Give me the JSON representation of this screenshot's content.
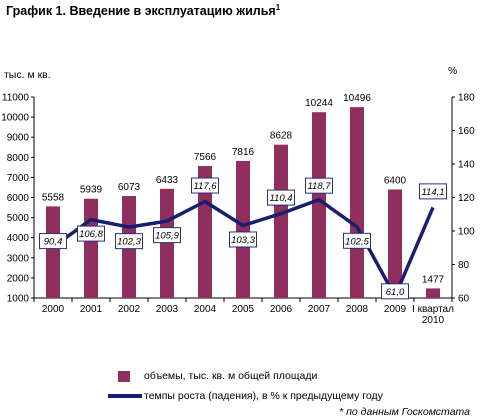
{
  "title": "График 1. Введение в эксплуатацию жилья",
  "title_mark": "1",
  "source_note": "* по данным Госкомстата",
  "colors": {
    "bar": "#8e2f5e",
    "line": "#16206e",
    "label_border": "#2a2f7a"
  },
  "chart_data": {
    "type": "bar",
    "categories": [
      "2000",
      "2001",
      "2002",
      "2003",
      "2004",
      "2005",
      "2006",
      "2007",
      "2008",
      "2009",
      "I квартал\n2010"
    ],
    "left_axis_label": "тыс. м кв.",
    "right_axis_label": "%",
    "left_ylim": [
      1000,
      11000
    ],
    "left_ticks": [
      1000,
      2000,
      3000,
      4000,
      5000,
      6000,
      7000,
      8000,
      9000,
      10000,
      11000
    ],
    "right_ylim": [
      60,
      180
    ],
    "right_ticks": [
      60,
      80,
      100,
      120,
      140,
      160,
      180
    ],
    "grid": false,
    "series": [
      {
        "name": "объемы, тыс. кв. м общей площади",
        "type": "bar",
        "axis": "left",
        "values": [
          5558,
          5939,
          6073,
          6433,
          7566,
          7816,
          8628,
          10244,
          10496,
          6400,
          1477
        ],
        "labels": [
          "5558",
          "5939",
          "6073",
          "6433",
          "7566",
          "7816",
          "8628",
          "10244",
          "10496",
          "6400",
          "1477"
        ]
      },
      {
        "name": "темпы роста (падения), в % к предыдущему году",
        "type": "line",
        "axis": "right",
        "values": [
          90.4,
          106.8,
          102.3,
          105.9,
          117.6,
          103.3,
          110.4,
          118.7,
          102.5,
          61.0,
          114.1
        ],
        "labels": [
          "90,4",
          "106,8",
          "102,3",
          "105,9",
          "117,6",
          "103,3",
          "110,4",
          "118,7",
          "102,5",
          "61,0",
          "114,1"
        ]
      }
    ],
    "legend_position": "bottom"
  }
}
